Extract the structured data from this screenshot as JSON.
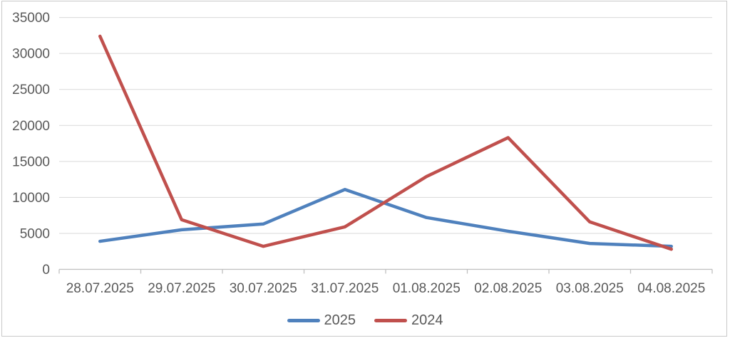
{
  "chart_data": {
    "type": "line",
    "title": "",
    "xlabel": "",
    "ylabel": "",
    "categories": [
      "28.07.2025",
      "29.07.2025",
      "30.07.2025",
      "31.07.2025",
      "01.08.2025",
      "02.08.2025",
      "03.08.2025",
      "04.08.2025"
    ],
    "series": [
      {
        "name": "2025",
        "color": "#4F81BD",
        "values": [
          3900,
          5500,
          6300,
          11100,
          7200,
          5300,
          3600,
          3200
        ]
      },
      {
        "name": "2024",
        "color": "#C0504D",
        "values": [
          32400,
          6900,
          3200,
          5900,
          12900,
          18300,
          6600,
          2800
        ]
      }
    ],
    "ylim": [
      0,
      35000
    ],
    "ytick_step": 5000,
    "yticks": [
      "0",
      "5000",
      "10000",
      "15000",
      "20000",
      "25000",
      "30000",
      "35000"
    ],
    "grid": true,
    "legend_position": "bottom",
    "colors": {
      "gridline": "#D9D9D9",
      "axis": "#BFBFBF",
      "tick_label": "#595959",
      "background": "#FFFFFF",
      "border": "#C9C9C9"
    }
  }
}
